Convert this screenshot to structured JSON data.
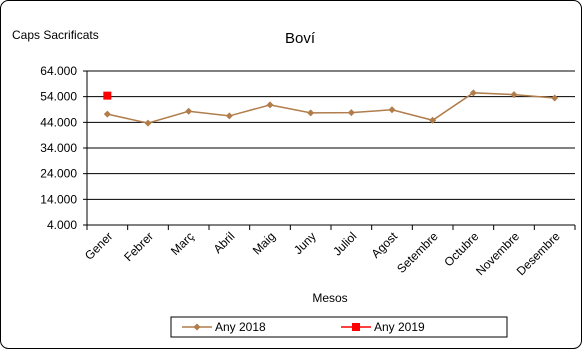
{
  "chart_data": {
    "type": "line",
    "title": "Boví",
    "ylabel": "Caps Sacrificats",
    "xlabel": "Mesos",
    "categories": [
      "Gener",
      "Febrer",
      "Març",
      "Abril",
      "Maig",
      "Juny",
      "Juliol",
      "Agost",
      "Setembre",
      "Octubre",
      "Novembre",
      "Desembre"
    ],
    "y_ticks": [
      "64.000",
      "54.000",
      "44.000",
      "34.000",
      "24.000",
      "14.000",
      "4.000"
    ],
    "y_tick_values": [
      64000,
      54000,
      44000,
      34000,
      24000,
      14000,
      4000
    ],
    "ylim": [
      4000,
      64000
    ],
    "grid": true,
    "legend_position": "bottom",
    "series": [
      {
        "name": "Any 2018",
        "color": "#B07D4B",
        "marker": "diamond",
        "values": [
          47200,
          43700,
          48300,
          46500,
          50800,
          47700,
          47800,
          48900,
          44800,
          55500,
          54800,
          53500
        ]
      },
      {
        "name": "Any 2019",
        "color": "#FF0000",
        "marker": "square",
        "values": [
          54400,
          null,
          null,
          null,
          null,
          null,
          null,
          null,
          null,
          null,
          null,
          null
        ]
      }
    ]
  }
}
